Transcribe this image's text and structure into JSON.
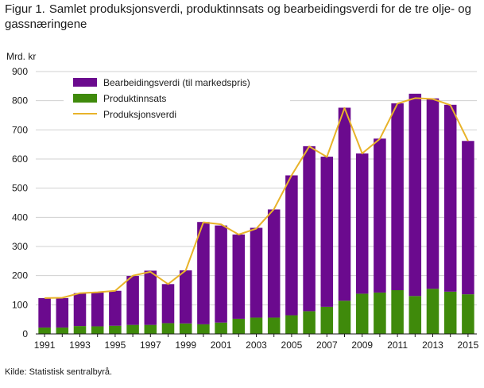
{
  "figure": {
    "prefix": "Figur 1.",
    "title": "Samlet produksjonsverdi, produktinnsats og bearbeidingsverdi for de tre olje- og gassnæringene",
    "source": "Kilde: Statistisk sentralbyrå."
  },
  "chart_data": {
    "type": "bar",
    "stacked": true,
    "unit_label": "Mrd. kr",
    "categories": [
      "1991",
      "1992",
      "1993",
      "1994",
      "1995",
      "1996",
      "1997",
      "1998",
      "1999",
      "2000",
      "2001",
      "2002",
      "2003",
      "2004",
      "2005",
      "2006",
      "2007",
      "2008",
      "2009",
      "2010",
      "2011",
      "2012",
      "2013",
      "2014",
      "2015"
    ],
    "x_tick_labels": [
      "1991",
      "1993",
      "1995",
      "1997",
      "1999",
      "2001",
      "2003",
      "2005",
      "2007",
      "2009",
      "2011",
      "2013",
      "2015"
    ],
    "ylim": [
      0,
      900
    ],
    "y_ticks": [
      0,
      100,
      200,
      300,
      400,
      500,
      600,
      700,
      800,
      900
    ],
    "grid": true,
    "legend_position": "top-left",
    "series": [
      {
        "name": "Bearbeidingsverdi (til markedspris)",
        "type": "bar",
        "color": "#6b0a8e",
        "values": [
          101,
          101,
          113,
          116,
          120,
          168,
          186,
          134,
          182,
          351,
          333,
          289,
          308,
          371,
          480,
          566,
          515,
          662,
          481,
          528,
          641,
          694,
          653,
          641,
          526
        ]
      },
      {
        "name": "Produktinnsats",
        "type": "bar",
        "color": "#3f8a0b",
        "values": [
          22,
          22,
          27,
          26,
          28,
          31,
          31,
          37,
          36,
          33,
          39,
          52,
          56,
          56,
          64,
          78,
          93,
          114,
          138,
          142,
          150,
          130,
          155,
          145,
          136
        ]
      },
      {
        "name": "Produksjonsverdi",
        "type": "line",
        "color": "#e8b32a",
        "values": [
          123,
          124,
          140,
          143,
          148,
          200,
          213,
          171,
          218,
          383,
          376,
          341,
          361,
          428,
          544,
          643,
          607,
          775,
          619,
          669,
          790,
          809,
          806,
          785,
          662
        ]
      }
    ]
  }
}
